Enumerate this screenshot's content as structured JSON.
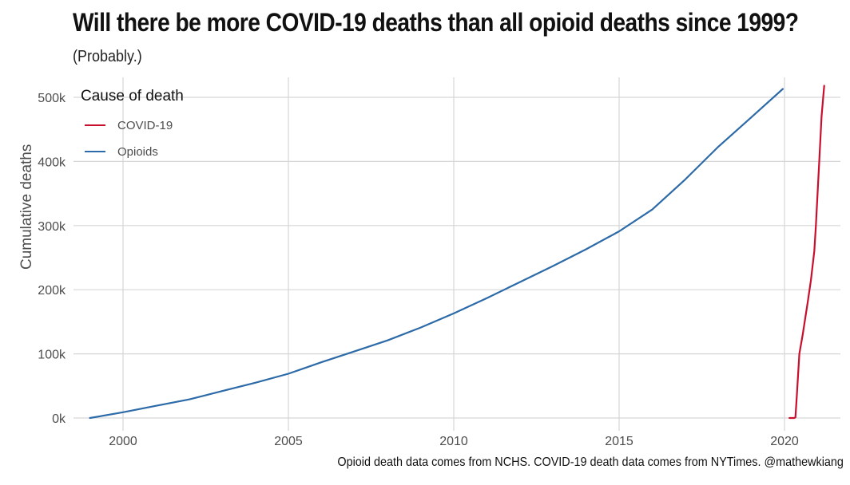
{
  "chart_data": {
    "type": "line",
    "title": "Will there be more COVID-19 deaths than all opioid deaths since 1999?",
    "subtitle": "(Probably.)",
    "caption": "Opioid death data comes from NCHS. COVID-19 death data comes from NYTimes. @mathewkiang",
    "xlabel": "",
    "ylabel": "Cumulative deaths",
    "xlim": [
      1998.4,
      2021.6
    ],
    "ylim": [
      0,
      520000
    ],
    "x_ticks": [
      2000,
      2005,
      2010,
      2015,
      2020
    ],
    "x_tick_labels": [
      "2000",
      "2005",
      "2010",
      "2015",
      "2020"
    ],
    "y_ticks": [
      0,
      100000,
      200000,
      300000,
      400000,
      500000
    ],
    "y_tick_labels": [
      "0k",
      "100k",
      "200k",
      "300k",
      "400k",
      "500k"
    ],
    "grid": true,
    "legend": {
      "title": "Cause of death",
      "position": "top-left",
      "entries": [
        {
          "label": "COVID-19",
          "color": "#c8102e"
        },
        {
          "label": "Opioids",
          "color": "#2c6aa8"
        }
      ]
    },
    "series": [
      {
        "name": "Opioids",
        "color": "#2c6aa8",
        "x": [
          1999.0,
          2000.0,
          2001.0,
          2002.0,
          2003.0,
          2004.0,
          2005.0,
          2006.0,
          2007.0,
          2008.0,
          2009.0,
          2010.0,
          2011.0,
          2012.0,
          2013.0,
          2014.0,
          2015.0,
          2016.0,
          2017.0,
          2018.0,
          2019.0,
          2019.95
        ],
        "y": [
          0,
          9000,
          19000,
          29000,
          42000,
          55000,
          69000,
          87000,
          104000,
          121000,
          141000,
          163000,
          187000,
          212000,
          237000,
          263000,
          291000,
          325000,
          372000,
          423000,
          469000,
          513000
        ]
      },
      {
        "name": "COVID-19",
        "color": "#c8102e",
        "x": [
          2020.15,
          2020.3,
          2020.33,
          2020.38,
          2020.45,
          2020.55,
          2020.7,
          2020.8,
          2020.9,
          2020.95,
          2021.0,
          2021.05,
          2021.12,
          2021.2
        ],
        "y": [
          0,
          0,
          1000,
          40000,
          100000,
          130000,
          180000,
          215000,
          260000,
          300000,
          350000,
          400000,
          470000,
          518000
        ]
      }
    ]
  }
}
